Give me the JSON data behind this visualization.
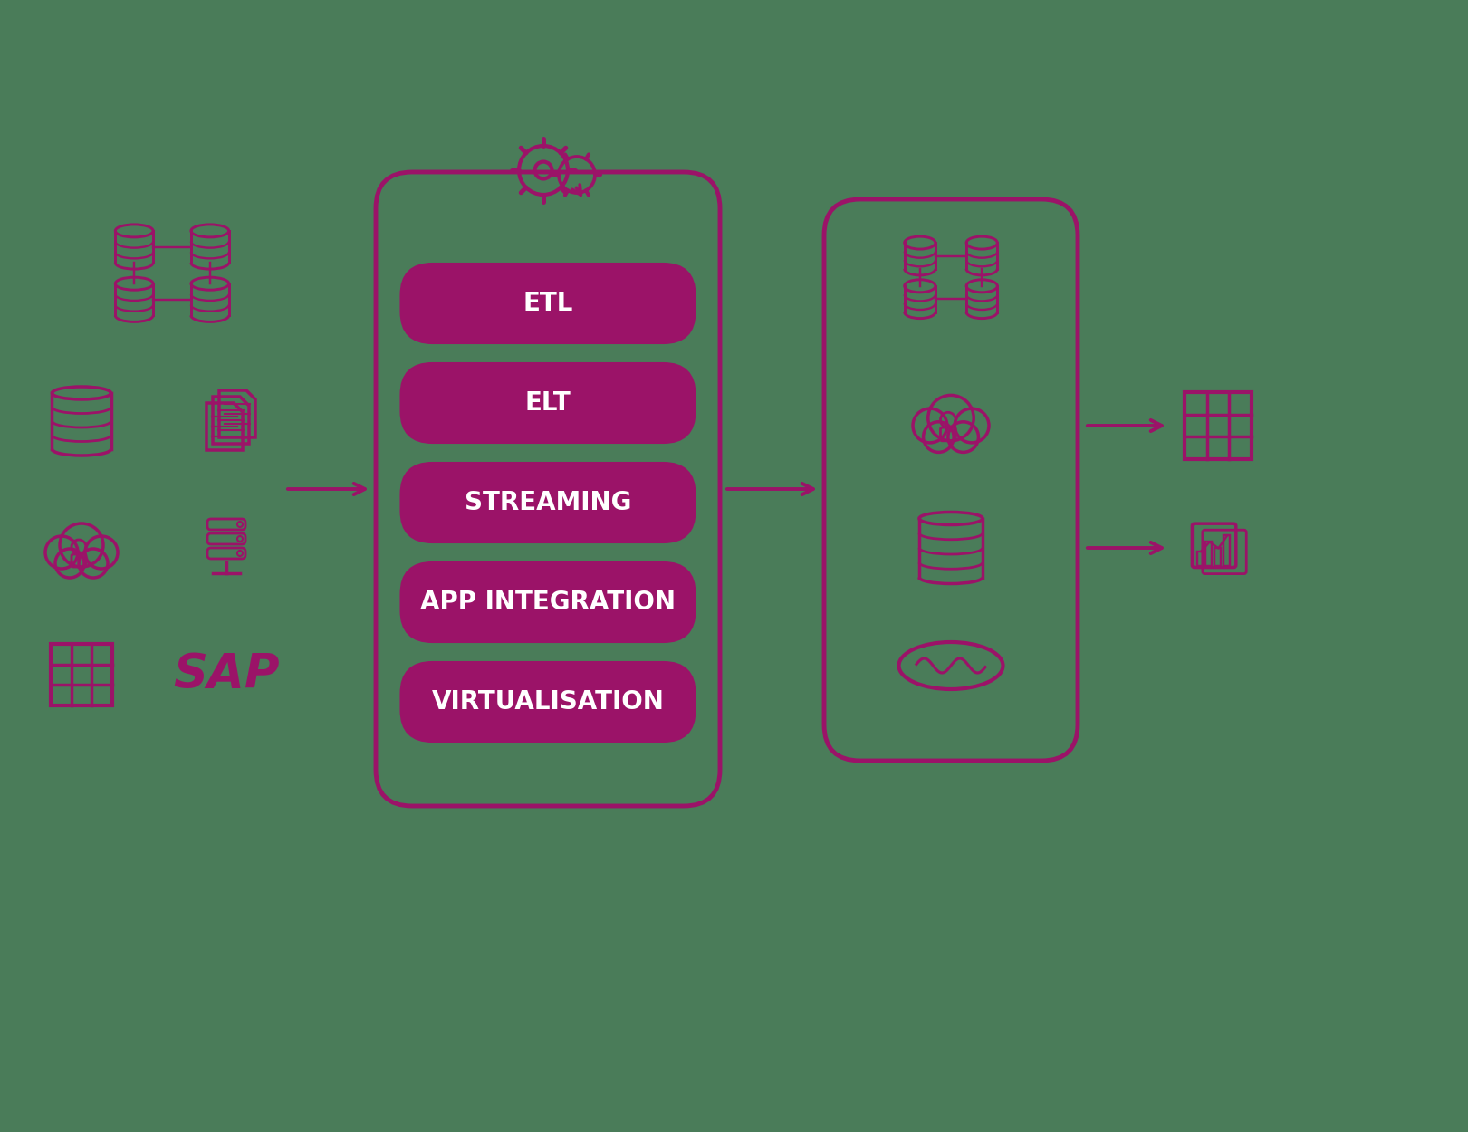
{
  "bg_color": "#4a7c59",
  "primary_color": "#9b1368",
  "box_text_color": "#ffffff",
  "arrow_color": "#9b1368",
  "etl_labels": [
    "ETL",
    "ELT",
    "STREAMING",
    "APP INTEGRATION",
    "VIRTUALISATION"
  ],
  "label_fontsize": 20,
  "sap_fontsize": 38,
  "figsize": [
    16.21,
    12.5
  ],
  "dpi": 100,
  "xlim": [
    0,
    16.21
  ],
  "ylim": [
    0,
    12.5
  ]
}
